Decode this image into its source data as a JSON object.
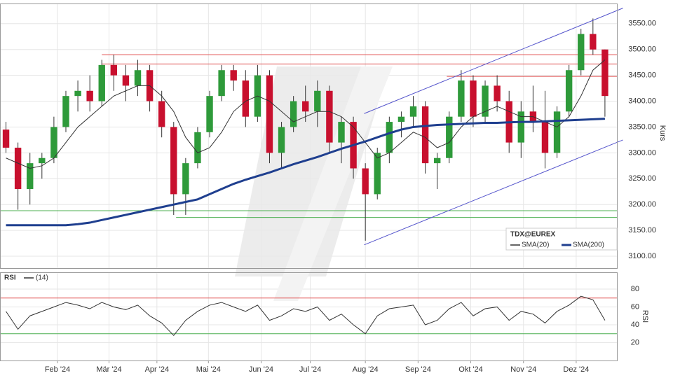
{
  "chart_data": [
    {
      "type": "candlestick",
      "title": "TDX@EUREX",
      "y_label": "Kurs",
      "x": [
        0,
        1,
        2,
        3,
        4,
        5,
        6,
        7,
        8,
        9,
        10,
        11,
        12,
        13,
        14,
        15,
        16,
        17,
        18,
        19,
        20,
        21,
        22,
        23,
        24,
        25,
        26,
        27,
        28,
        29,
        30,
        31,
        32,
        33,
        34,
        35,
        36,
        37,
        38,
        39,
        40,
        41,
        42,
        43,
        44,
        45,
        46,
        47,
        48,
        49,
        50
      ],
      "open": [
        3345,
        3310,
        3230,
        3280,
        3290,
        3350,
        3410,
        3420,
        3400,
        3470,
        3450,
        3430,
        3460,
        3400,
        3350,
        3220,
        3280,
        3340,
        3410,
        3460,
        3440,
        3370,
        3450,
        3300,
        3350,
        3400,
        3380,
        3420,
        3320,
        3360,
        3270,
        3220,
        3300,
        3360,
        3370,
        3390,
        3280,
        3290,
        3370,
        3440,
        3370,
        3430,
        3400,
        3320,
        3380,
        3360,
        3300,
        3380,
        3460,
        3530,
        3500
      ],
      "high": [
        3360,
        3320,
        3300,
        3300,
        3370,
        3420,
        3440,
        3450,
        3480,
        3490,
        3470,
        3480,
        3470,
        3420,
        3360,
        3290,
        3350,
        3420,
        3470,
        3470,
        3460,
        3470,
        3460,
        3360,
        3410,
        3430,
        3440,
        3430,
        3370,
        3370,
        3280,
        3310,
        3370,
        3380,
        3410,
        3400,
        3300,
        3380,
        3460,
        3450,
        3440,
        3450,
        3420,
        3400,
        3430,
        3420,
        3390,
        3470,
        3540,
        3560,
        3500
      ],
      "low": [
        3300,
        3190,
        3200,
        3250,
        3280,
        3340,
        3380,
        3380,
        3390,
        3420,
        3400,
        3410,
        3380,
        3330,
        3180,
        3180,
        3270,
        3330,
        3400,
        3420,
        3350,
        3360,
        3280,
        3270,
        3340,
        3360,
        3350,
        3300,
        3280,
        3250,
        3130,
        3210,
        3280,
        3330,
        3350,
        3260,
        3230,
        3280,
        3360,
        3350,
        3360,
        3380,
        3300,
        3290,
        3340,
        3270,
        3290,
        3370,
        3450,
        3490,
        3370
      ],
      "close": [
        3310,
        3230,
        3280,
        3290,
        3350,
        3410,
        3420,
        3400,
        3470,
        3450,
        3430,
        3460,
        3400,
        3350,
        3220,
        3280,
        3340,
        3410,
        3460,
        3440,
        3370,
        3450,
        3300,
        3350,
        3400,
        3380,
        3420,
        3320,
        3360,
        3270,
        3220,
        3300,
        3360,
        3370,
        3390,
        3280,
        3290,
        3370,
        3440,
        3370,
        3430,
        3400,
        3320,
        3380,
        3360,
        3300,
        3380,
        3460,
        3530,
        3500,
        3410
      ],
      "up_color": "#2e9a3a",
      "down_color": "#c8102e",
      "overlays": [
        {
          "name": "SMA(20)",
          "color": "#333333",
          "width": 1,
          "values": [
            3290,
            3280,
            3270,
            3275,
            3290,
            3320,
            3350,
            3370,
            3390,
            3410,
            3420,
            3430,
            3430,
            3410,
            3380,
            3330,
            3300,
            3310,
            3340,
            3380,
            3400,
            3410,
            3400,
            3380,
            3360,
            3370,
            3380,
            3380,
            3370,
            3350,
            3320,
            3290,
            3300,
            3320,
            3340,
            3330,
            3310,
            3320,
            3350,
            3370,
            3380,
            3390,
            3380,
            3370,
            3370,
            3360,
            3350,
            3370,
            3410,
            3460,
            3480
          ]
        },
        {
          "name": "SMA(200)",
          "color": "#1f3f8f",
          "width": 3,
          "values": [
            3160,
            3160,
            3160,
            3160,
            3160,
            3160,
            3162,
            3165,
            3170,
            3175,
            3180,
            3185,
            3190,
            3195,
            3200,
            3205,
            3210,
            3220,
            3230,
            3240,
            3248,
            3255,
            3262,
            3270,
            3278,
            3285,
            3292,
            3300,
            3308,
            3315,
            3322,
            3330,
            3338,
            3345,
            3350,
            3352,
            3354,
            3355,
            3356,
            3357,
            3358,
            3358,
            3359,
            3360,
            3360,
            3361,
            3362,
            3363,
            3364,
            3365,
            3366
          ]
        }
      ],
      "hlines": [
        {
          "value": 3490,
          "color": "#e05050",
          "x_start": 8
        },
        {
          "value": 3472,
          "color": "#e05050",
          "x_start": 8
        },
        {
          "value": 3448,
          "color": "#e05050",
          "x_start": 36.8
        },
        {
          "value": 3188,
          "color": "#4caf50",
          "x_start": -0.5
        },
        {
          "value": 3175,
          "color": "#4caf50",
          "x_start": 14.2
        }
      ],
      "channel": [
        {
          "color": "#5555cc",
          "x": [
            29.9,
            51.5
          ],
          "y": [
            3376,
            3580
          ]
        },
        {
          "color": "#5555cc",
          "x": [
            29.9,
            51.5
          ],
          "y": [
            3122,
            3325
          ]
        }
      ],
      "xlim": [
        -0.5,
        51
      ],
      "ylim": [
        3077,
        3589
      ],
      "yticks": [
        {
          "value": 3100,
          "label": "3100.00"
        },
        {
          "value": 3150,
          "label": "3150.00"
        },
        {
          "value": 3200,
          "label": "3200.00"
        },
        {
          "value": 3250,
          "label": "3250.00"
        },
        {
          "value": 3300,
          "label": "3300.00"
        },
        {
          "value": 3350,
          "label": "3350.00"
        },
        {
          "value": 3400,
          "label": "3400.00"
        },
        {
          "value": 3450,
          "label": "3450.00"
        },
        {
          "value": 3500,
          "label": "3500.00"
        },
        {
          "value": 3550,
          "label": "3550.00"
        }
      ],
      "grid": true
    },
    {
      "type": "line",
      "title": "RSI",
      "y_label": "RSI",
      "x": [
        0,
        1,
        2,
        3,
        4,
        5,
        6,
        7,
        8,
        9,
        10,
        11,
        12,
        13,
        14,
        15,
        16,
        17,
        18,
        19,
        20,
        21,
        22,
        23,
        24,
        25,
        26,
        27,
        28,
        29,
        30,
        31,
        32,
        33,
        34,
        35,
        36,
        37,
        38,
        39,
        40,
        41,
        42,
        43,
        44,
        45,
        46,
        47,
        48,
        49,
        50
      ],
      "series": [
        {
          "name": "(14)",
          "color": "#333333",
          "values": [
            55,
            35,
            50,
            55,
            60,
            65,
            62,
            58,
            65,
            60,
            57,
            62,
            50,
            42,
            28,
            45,
            55,
            62,
            65,
            60,
            55,
            62,
            45,
            50,
            58,
            55,
            60,
            45,
            52,
            40,
            30,
            50,
            58,
            60,
            62,
            40,
            45,
            58,
            65,
            50,
            58,
            60,
            45,
            55,
            52,
            42,
            55,
            62,
            72,
            68,
            45
          ]
        }
      ],
      "hlines": [
        {
          "value": 70,
          "color": "#e05050"
        },
        {
          "value": 30,
          "color": "#4caf50"
        }
      ],
      "xlim": [
        -0.5,
        51
      ],
      "ylim": [
        0,
        98
      ],
      "yticks": [
        20,
        40,
        60,
        80
      ],
      "xticks": [
        {
          "value": 4.3,
          "label": "Feb '24"
        },
        {
          "value": 8.6,
          "label": "Mär '24"
        },
        {
          "value": 12.6,
          "label": "Apr '24"
        },
        {
          "value": 16.9,
          "label": "Mai '24"
        },
        {
          "value": 21.3,
          "label": "Jun '24"
        },
        {
          "value": 25.4,
          "label": "Jul '24"
        },
        {
          "value": 30,
          "label": "Aug '24"
        },
        {
          "value": 34.4,
          "label": "Sep '24"
        },
        {
          "value": 38.8,
          "label": "Okt '24"
        },
        {
          "value": 43.2,
          "label": "Nov '24"
        },
        {
          "value": 47.6,
          "label": "Dez '24"
        }
      ],
      "grid": true
    }
  ]
}
